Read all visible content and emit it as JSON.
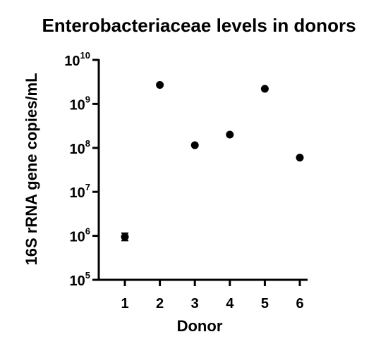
{
  "chart_data": {
    "type": "scatter",
    "title": "Enterobacteriaceae levels in donors",
    "xlabel": "Donor",
    "ylabel": "16S rRNA gene copies/mL",
    "y_scale": "log",
    "ylim": [
      100000,
      10000000000
    ],
    "y_ticks": [
      {
        "base": "10",
        "exp": "5",
        "value": 100000
      },
      {
        "base": "10",
        "exp": "6",
        "value": 1000000
      },
      {
        "base": "10",
        "exp": "7",
        "value": 10000000
      },
      {
        "base": "10",
        "exp": "8",
        "value": 100000000
      },
      {
        "base": "10",
        "exp": "9",
        "value": 1000000000
      },
      {
        "base": "10",
        "exp": "10",
        "value": 10000000000
      }
    ],
    "categories": [
      "1",
      "2",
      "3",
      "4",
      "5",
      "6"
    ],
    "values": [
      950000,
      2700000000,
      115000000,
      200000000,
      2200000000,
      60000000
    ],
    "error_bars": [
      {
        "low": 780000,
        "high": 1150000
      },
      null,
      null,
      null,
      null,
      null
    ],
    "grid": false,
    "point_color": "#000000"
  }
}
